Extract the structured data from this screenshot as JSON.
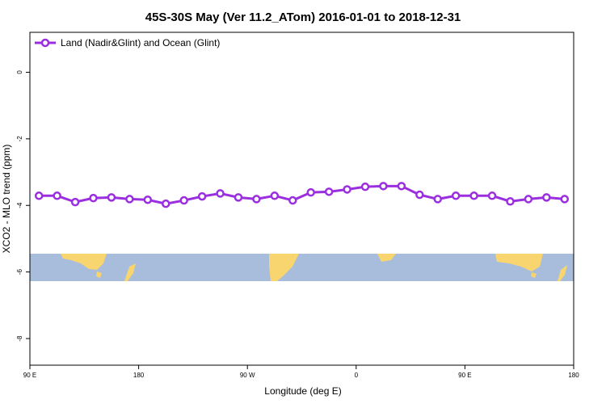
{
  "chart_data": {
    "type": "line",
    "title": "45S-30S May (Ver 11.2_ATom)   2016-01-01 to 2018-12-31",
    "x_label": "Longitude (deg E)",
    "y_label": "XCO2 - MLO trend (ppm)",
    "x": [
      97.5,
      112.5,
      127.5,
      142.5,
      157.5,
      172.5,
      187.5,
      202.5,
      217.5,
      232.5,
      247.5,
      262.5,
      277.5,
      292.5,
      307.5,
      322.5,
      337.5,
      352.5,
      367.5,
      382.5,
      397.5,
      412.5,
      427.5,
      442.5,
      457.5,
      472.5,
      487.5,
      502.5,
      517.5,
      532.5
    ],
    "series": [
      {
        "name": "Land (Nadir&Glint) and Ocean (Glint)",
        "color": "#9b2fe0",
        "values": [
          -3.71,
          -3.71,
          -3.9,
          -3.78,
          -3.76,
          -3.81,
          -3.83,
          -3.95,
          -3.85,
          -3.73,
          -3.64,
          -3.76,
          -3.81,
          -3.71,
          -3.85,
          -3.61,
          -3.59,
          -3.52,
          -3.44,
          -3.42,
          -3.42,
          -3.68,
          -3.81,
          -3.71,
          -3.71,
          -3.71,
          -3.88,
          -3.81,
          -3.76,
          -3.81
        ]
      }
    ],
    "xlim": [
      90,
      540
    ],
    "xticks": [
      {
        "value": 90,
        "label": "90 E"
      },
      {
        "value": 180,
        "label": "180"
      },
      {
        "value": 270,
        "label": "90 W"
      },
      {
        "value": 360,
        "label": "0"
      },
      {
        "value": 450,
        "label": "90 E"
      },
      {
        "value": 540,
        "label": "180"
      }
    ],
    "ylim": [
      -8.8,
      1.2
    ],
    "yticks": [
      0,
      -2,
      -4,
      -6,
      -8
    ],
    "legend": "top-left"
  }
}
